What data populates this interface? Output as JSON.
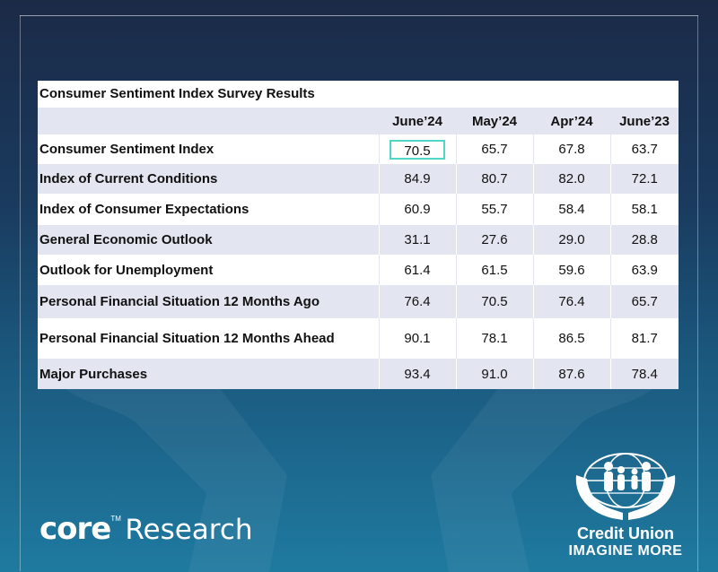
{
  "table": {
    "title": "Consumer Sentiment Index Survey Results",
    "columns": [
      "June’24",
      "May’24",
      "Apr’24",
      "June’23"
    ],
    "rows": [
      {
        "label": "Consumer Sentiment Index",
        "values": [
          "70.5",
          "65.7",
          "67.8",
          "63.7"
        ]
      },
      {
        "label": "Index of Current Conditions",
        "values": [
          "84.9",
          "80.7",
          "82.0",
          "72.1"
        ]
      },
      {
        "label": "Index of Consumer Expectations",
        "values": [
          "60.9",
          "55.7",
          "58.4",
          "58.1"
        ]
      },
      {
        "label": "General Economic Outlook",
        "values": [
          "31.1",
          "27.6",
          "29.0",
          "28.8"
        ]
      },
      {
        "label": "Outlook for Unemployment",
        "values": [
          "61.4",
          "61.5",
          "59.6",
          "63.9"
        ]
      },
      {
        "label": "Personal Financial Situation 12 Months Ago",
        "values": [
          "76.4",
          "70.5",
          "76.4",
          "65.7"
        ]
      },
      {
        "label": "Personal Financial Situation 12 Months Ahead",
        "values": [
          "90.1",
          "78.1",
          "86.5",
          "81.7"
        ]
      },
      {
        "label": "Major Purchases",
        "values": [
          "93.4",
          "91.0",
          "87.6",
          "78.4"
        ]
      }
    ],
    "highlight_color": "#4fd6c4",
    "row_shade_color": "#e3e6f1"
  },
  "branding": {
    "core_word": "core",
    "core_tm": "TM",
    "core_research": "Research",
    "cu_name": "Credit Union",
    "cu_tagline": "IMAGINE MORE",
    "logo_icon": "hands-globe-family-icon"
  }
}
